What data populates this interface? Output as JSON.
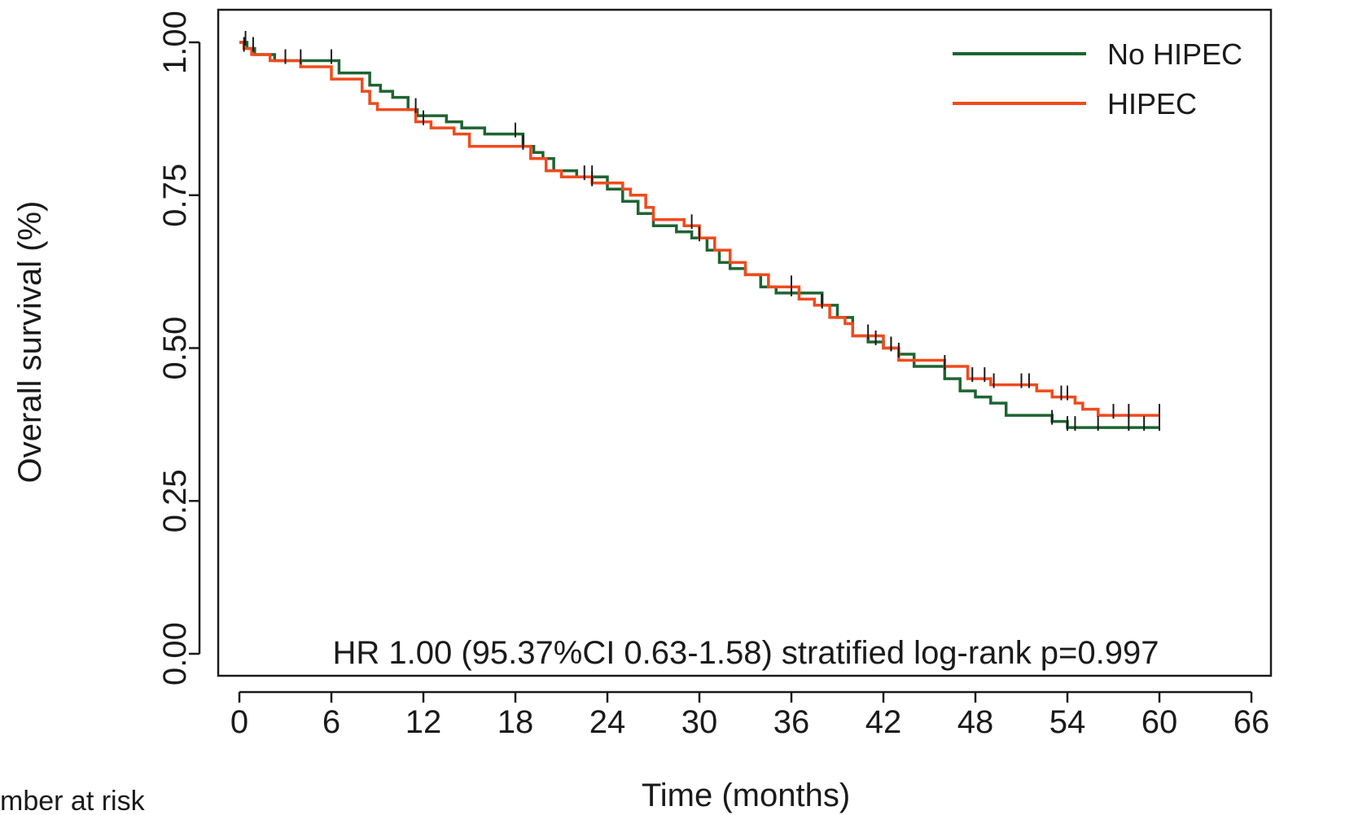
{
  "chart_data": {
    "type": "line",
    "xlabel": "Time (months)",
    "ylabel": "Overall survival (%)",
    "xlim": [
      0,
      66
    ],
    "ylim": [
      0,
      1
    ],
    "x_ticks": [
      "0",
      "6",
      "12",
      "18",
      "24",
      "30",
      "36",
      "42",
      "48",
      "54",
      "60",
      "66"
    ],
    "y_ticks": [
      "0.00",
      "0.25",
      "0.50",
      "0.75",
      "1.00"
    ],
    "annotation": "HR 1.00 (95.37%CI 0.63-1.58) stratified log-rank p=0.997",
    "footer_text": "mber at risk",
    "legend_position": "top-right",
    "series": [
      {
        "name": "No HIPEC",
        "color": "#1e6432",
        "x": [
          0,
          0.5,
          1.0,
          2.3,
          4.0,
          6.0,
          6.5,
          8.5,
          9.2,
          10.0,
          11.0,
          11.6,
          13.5,
          14.5,
          16.0,
          18.5,
          19.2,
          19.8,
          20.5,
          22.0,
          24.0,
          25.0,
          26.0,
          27.0,
          28.5,
          29.5,
          30.5,
          31.3,
          32.0,
          33.0,
          34.0,
          35.0,
          36.0,
          38.0,
          39.0,
          40.0,
          41.0,
          42.0,
          43.0,
          44.0,
          46.0,
          47.0,
          48.0,
          49.0,
          50.0,
          53.0,
          54.0,
          60.0
        ],
        "y": [
          1.0,
          0.99,
          0.98,
          0.97,
          0.97,
          0.97,
          0.95,
          0.93,
          0.92,
          0.91,
          0.89,
          0.88,
          0.87,
          0.86,
          0.85,
          0.83,
          0.82,
          0.81,
          0.79,
          0.78,
          0.76,
          0.74,
          0.72,
          0.7,
          0.69,
          0.68,
          0.66,
          0.64,
          0.63,
          0.62,
          0.6,
          0.59,
          0.59,
          0.57,
          0.55,
          0.52,
          0.51,
          0.5,
          0.49,
          0.47,
          0.45,
          0.43,
          0.42,
          0.41,
          0.39,
          0.38,
          0.37,
          0.37
        ],
        "censor_x": [
          0.4,
          0.9,
          4.0,
          6.0,
          11.5,
          18.0,
          18.5,
          22.5,
          23.0,
          30.0,
          36.0,
          38.0,
          41.5,
          42.5,
          43.0,
          53.0,
          54.0,
          54.5,
          56.0,
          58.0,
          59.0,
          60.0
        ]
      },
      {
        "name": "HIPEC",
        "color": "#f04a1c",
        "x": [
          0,
          0.3,
          0.8,
          2.0,
          4.0,
          6.0,
          8.0,
          8.5,
          9.0,
          11.5,
          12.5,
          14.0,
          15.0,
          18.0,
          19.0,
          20.0,
          21.0,
          23.0,
          25.0,
          25.5,
          26.5,
          27.0,
          29.0,
          30.0,
          31.0,
          32.0,
          33.0,
          34.5,
          36.5,
          37.5,
          38.5,
          39.5,
          40.0,
          42.0,
          43.0,
          46.0,
          47.5,
          49.0,
          52.0,
          53.0,
          54.5,
          55.0,
          56.0,
          60.0
        ],
        "y": [
          1.0,
          0.99,
          0.98,
          0.97,
          0.96,
          0.94,
          0.92,
          0.9,
          0.89,
          0.87,
          0.86,
          0.85,
          0.83,
          0.83,
          0.81,
          0.79,
          0.78,
          0.77,
          0.76,
          0.75,
          0.73,
          0.71,
          0.7,
          0.68,
          0.66,
          0.64,
          0.62,
          0.6,
          0.58,
          0.57,
          0.55,
          0.54,
          0.52,
          0.5,
          0.48,
          0.47,
          0.45,
          0.44,
          0.43,
          0.42,
          0.41,
          0.4,
          0.39,
          0.39
        ],
        "censor_x": [
          0.3,
          3.0,
          12.0,
          18.5,
          23.0,
          29.5,
          36.0,
          41.0,
          42.5,
          46.0,
          47.8,
          48.6,
          49.2,
          51.0,
          51.5,
          53.6,
          54.0,
          57.0,
          58.0,
          60.0
        ]
      }
    ]
  }
}
